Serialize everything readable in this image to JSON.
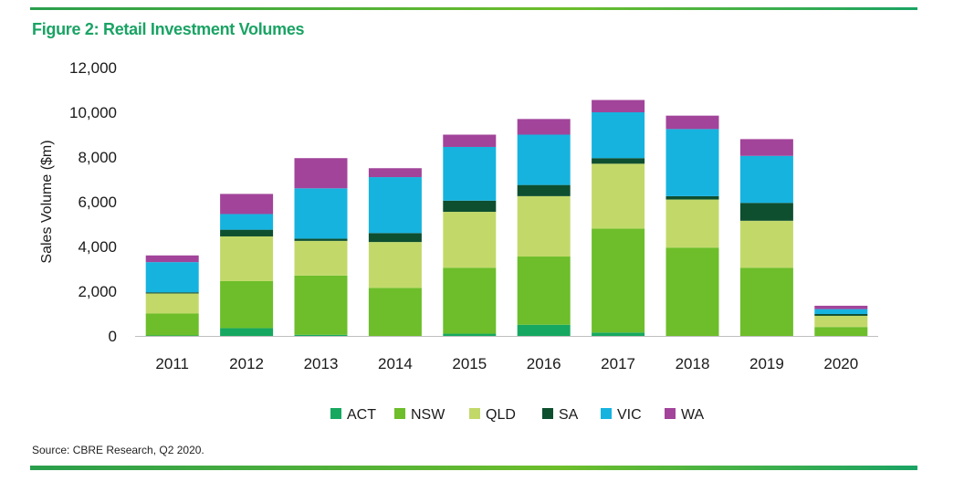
{
  "colors": {
    "accent": "#1aa364",
    "ACT": "#16a860",
    "NSW": "#6dbe2a",
    "QLD": "#c2d96a",
    "SA": "#0e4f30",
    "VIC": "#16b3df",
    "WA": "#a2449a"
  },
  "figure_title": "Figure 2: Retail Investment Volumes",
  "source": "Source: CBRE Research,  Q2 2020.",
  "chart_data": {
    "type": "bar",
    "stacked": true,
    "title": "",
    "xlabel": "",
    "ylabel": "Sales Volume ($m)",
    "ylim": [
      0,
      12000
    ],
    "yticks": [
      0,
      2000,
      4000,
      6000,
      8000,
      10000,
      12000
    ],
    "ytick_labels": [
      "0",
      "2,000",
      "4,000",
      "6,000",
      "8,000",
      "10,000",
      "12,000"
    ],
    "grid": false,
    "legend_position": "bottom",
    "categories": [
      "2011",
      "2012",
      "2013",
      "2014",
      "2015",
      "2016",
      "2017",
      "2018",
      "2019",
      "2020"
    ],
    "series": [
      {
        "name": "ACT",
        "values": [
          20,
          350,
          50,
          0,
          100,
          500,
          150,
          0,
          0,
          0
        ]
      },
      {
        "name": "NSW",
        "values": [
          980,
          2100,
          2650,
          2150,
          2950,
          3050,
          4650,
          3950,
          3050,
          400
        ]
      },
      {
        "name": "QLD",
        "values": [
          900,
          2000,
          1550,
          2050,
          2500,
          2700,
          2900,
          2150,
          2100,
          500
        ]
      },
      {
        "name": "SA",
        "values": [
          50,
          300,
          100,
          400,
          500,
          500,
          250,
          150,
          800,
          80
        ]
      },
      {
        "name": "VIC",
        "values": [
          1350,
          700,
          2250,
          2500,
          2400,
          2250,
          2050,
          3000,
          2100,
          220
        ]
      },
      {
        "name": "WA",
        "values": [
          300,
          900,
          1350,
          400,
          550,
          700,
          550,
          600,
          750,
          150
        ]
      }
    ]
  }
}
